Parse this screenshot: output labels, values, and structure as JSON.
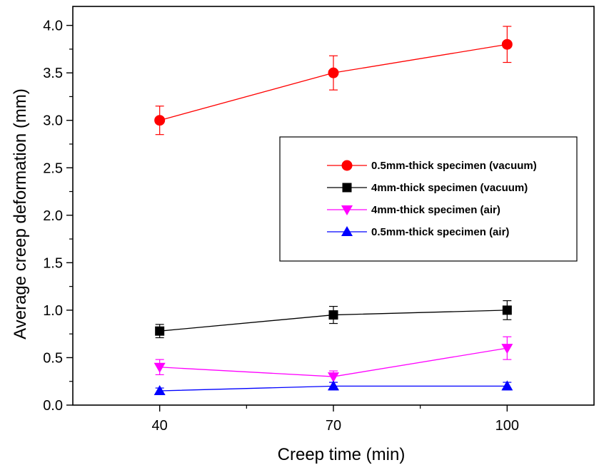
{
  "chart_data": {
    "type": "line",
    "title": "",
    "xlabel": "Creep time (min)",
    "ylabel": "Average creep deformation (mm)",
    "x": [
      40,
      70,
      100
    ],
    "xlim": [
      25,
      115
    ],
    "ylim": [
      0,
      4.2
    ],
    "xticks": [
      "40",
      "70",
      "100"
    ],
    "yticks": [
      "0.0",
      "0.5",
      "1.0",
      "1.5",
      "2.0",
      "2.5",
      "3.0",
      "3.5",
      "4.0"
    ],
    "grid": false,
    "legend_position": "center-right",
    "series": [
      {
        "name": "0.5mm-thick specimen (vacuum)",
        "values": [
          3.0,
          3.5,
          3.8
        ],
        "errors": [
          0.15,
          0.18,
          0.19
        ],
        "color": "#ff0000",
        "marker": "circle"
      },
      {
        "name": "4mm-thick specimen (vacuum)",
        "values": [
          0.78,
          0.95,
          1.0
        ],
        "errors": [
          0.07,
          0.09,
          0.1
        ],
        "color": "#000000",
        "marker": "square"
      },
      {
        "name": "4mm-thick specimen (air)",
        "values": [
          0.4,
          0.3,
          0.6
        ],
        "errors": [
          0.08,
          0.06,
          0.12
        ],
        "color": "#ff00ff",
        "marker": "triangle-down"
      },
      {
        "name": "0.5mm-thick specimen (air)",
        "values": [
          0.15,
          0.2,
          0.2
        ],
        "errors": [
          0.03,
          0.04,
          0.04
        ],
        "color": "#0000ff",
        "marker": "triangle-up"
      }
    ]
  }
}
